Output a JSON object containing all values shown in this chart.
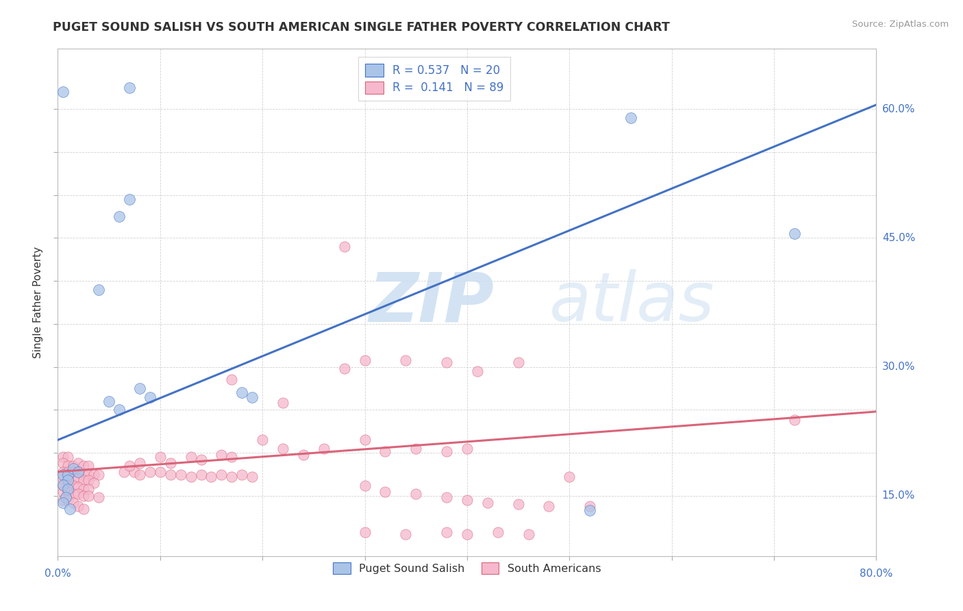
{
  "title": "PUGET SOUND SALISH VS SOUTH AMERICAN SINGLE FATHER POVERTY CORRELATION CHART",
  "source": "Source: ZipAtlas.com",
  "ylabel": "Single Father Poverty",
  "xlim": [
    0.0,
    0.8
  ],
  "ylim": [
    0.08,
    0.67
  ],
  "ytick_positions": [
    0.15,
    0.2,
    0.25,
    0.3,
    0.35,
    0.4,
    0.45,
    0.5,
    0.55,
    0.6
  ],
  "ytick_labels": [
    "15.0%",
    "",
    "",
    "30.0%",
    "",
    "",
    "45.0%",
    "",
    "",
    "60.0%"
  ],
  "xtick_positions": [
    0.0,
    0.1,
    0.2,
    0.3,
    0.4,
    0.5,
    0.6,
    0.7,
    0.8
  ],
  "color_blue": "#aac4e8",
  "color_pink": "#f5b8cc",
  "line_blue": "#4472c4",
  "line_pink": "#d9647a",
  "watermark_zip": "ZIP",
  "watermark_atlas": "atlas",
  "blue_line_x": [
    0.0,
    0.8
  ],
  "blue_line_y": [
    0.215,
    0.605
  ],
  "pink_line_x": [
    0.0,
    0.8
  ],
  "pink_line_y": [
    0.178,
    0.248
  ],
  "blue_points": [
    [
      0.005,
      0.175
    ],
    [
      0.01,
      0.175
    ],
    [
      0.01,
      0.168
    ],
    [
      0.015,
      0.182
    ],
    [
      0.02,
      0.178
    ],
    [
      0.005,
      0.163
    ],
    [
      0.01,
      0.158
    ],
    [
      0.008,
      0.148
    ],
    [
      0.005,
      0.142
    ],
    [
      0.012,
      0.135
    ],
    [
      0.05,
      0.26
    ],
    [
      0.06,
      0.25
    ],
    [
      0.04,
      0.39
    ],
    [
      0.08,
      0.275
    ],
    [
      0.09,
      0.265
    ],
    [
      0.18,
      0.27
    ],
    [
      0.19,
      0.265
    ],
    [
      0.52,
      0.133
    ],
    [
      0.07,
      0.495
    ],
    [
      0.06,
      0.475
    ],
    [
      0.56,
      0.59
    ],
    [
      0.72,
      0.455
    ],
    [
      0.07,
      0.625
    ],
    [
      0.005,
      0.62
    ]
  ],
  "pink_points": [
    [
      0.005,
      0.195
    ],
    [
      0.01,
      0.195
    ],
    [
      0.005,
      0.188
    ],
    [
      0.01,
      0.185
    ],
    [
      0.015,
      0.185
    ],
    [
      0.02,
      0.188
    ],
    [
      0.025,
      0.185
    ],
    [
      0.03,
      0.185
    ],
    [
      0.005,
      0.178
    ],
    [
      0.01,
      0.178
    ],
    [
      0.015,
      0.178
    ],
    [
      0.02,
      0.178
    ],
    [
      0.025,
      0.175
    ],
    [
      0.03,
      0.175
    ],
    [
      0.035,
      0.175
    ],
    [
      0.04,
      0.175
    ],
    [
      0.005,
      0.17
    ],
    [
      0.01,
      0.17
    ],
    [
      0.015,
      0.17
    ],
    [
      0.02,
      0.17
    ],
    [
      0.025,
      0.168
    ],
    [
      0.03,
      0.168
    ],
    [
      0.035,
      0.165
    ],
    [
      0.005,
      0.162
    ],
    [
      0.01,
      0.162
    ],
    [
      0.015,
      0.162
    ],
    [
      0.02,
      0.16
    ],
    [
      0.025,
      0.158
    ],
    [
      0.03,
      0.158
    ],
    [
      0.005,
      0.155
    ],
    [
      0.01,
      0.155
    ],
    [
      0.015,
      0.152
    ],
    [
      0.02,
      0.152
    ],
    [
      0.025,
      0.15
    ],
    [
      0.03,
      0.15
    ],
    [
      0.04,
      0.148
    ],
    [
      0.005,
      0.145
    ],
    [
      0.01,
      0.145
    ],
    [
      0.015,
      0.142
    ],
    [
      0.02,
      0.138
    ],
    [
      0.025,
      0.135
    ],
    [
      0.065,
      0.178
    ],
    [
      0.075,
      0.178
    ],
    [
      0.08,
      0.175
    ],
    [
      0.09,
      0.178
    ],
    [
      0.1,
      0.178
    ],
    [
      0.11,
      0.175
    ],
    [
      0.12,
      0.175
    ],
    [
      0.13,
      0.172
    ],
    [
      0.14,
      0.175
    ],
    [
      0.15,
      0.172
    ],
    [
      0.16,
      0.175
    ],
    [
      0.17,
      0.172
    ],
    [
      0.18,
      0.175
    ],
    [
      0.19,
      0.172
    ],
    [
      0.07,
      0.185
    ],
    [
      0.08,
      0.188
    ],
    [
      0.1,
      0.195
    ],
    [
      0.11,
      0.188
    ],
    [
      0.13,
      0.195
    ],
    [
      0.14,
      0.192
    ],
    [
      0.16,
      0.198
    ],
    [
      0.17,
      0.195
    ],
    [
      0.17,
      0.285
    ],
    [
      0.2,
      0.215
    ],
    [
      0.22,
      0.205
    ],
    [
      0.24,
      0.198
    ],
    [
      0.26,
      0.205
    ],
    [
      0.3,
      0.215
    ],
    [
      0.32,
      0.202
    ],
    [
      0.35,
      0.205
    ],
    [
      0.38,
      0.202
    ],
    [
      0.4,
      0.205
    ],
    [
      0.22,
      0.258
    ],
    [
      0.28,
      0.298
    ],
    [
      0.3,
      0.308
    ],
    [
      0.34,
      0.308
    ],
    [
      0.38,
      0.305
    ],
    [
      0.41,
      0.295
    ],
    [
      0.45,
      0.305
    ],
    [
      0.28,
      0.44
    ],
    [
      0.5,
      0.172
    ],
    [
      0.3,
      0.162
    ],
    [
      0.32,
      0.155
    ],
    [
      0.35,
      0.152
    ],
    [
      0.38,
      0.148
    ],
    [
      0.4,
      0.145
    ],
    [
      0.42,
      0.142
    ],
    [
      0.45,
      0.14
    ],
    [
      0.48,
      0.138
    ],
    [
      0.52,
      0.138
    ],
    [
      0.72,
      0.238
    ],
    [
      0.3,
      0.108
    ],
    [
      0.34,
      0.105
    ],
    [
      0.38,
      0.108
    ],
    [
      0.4,
      0.105
    ],
    [
      0.43,
      0.108
    ],
    [
      0.46,
      0.105
    ]
  ]
}
